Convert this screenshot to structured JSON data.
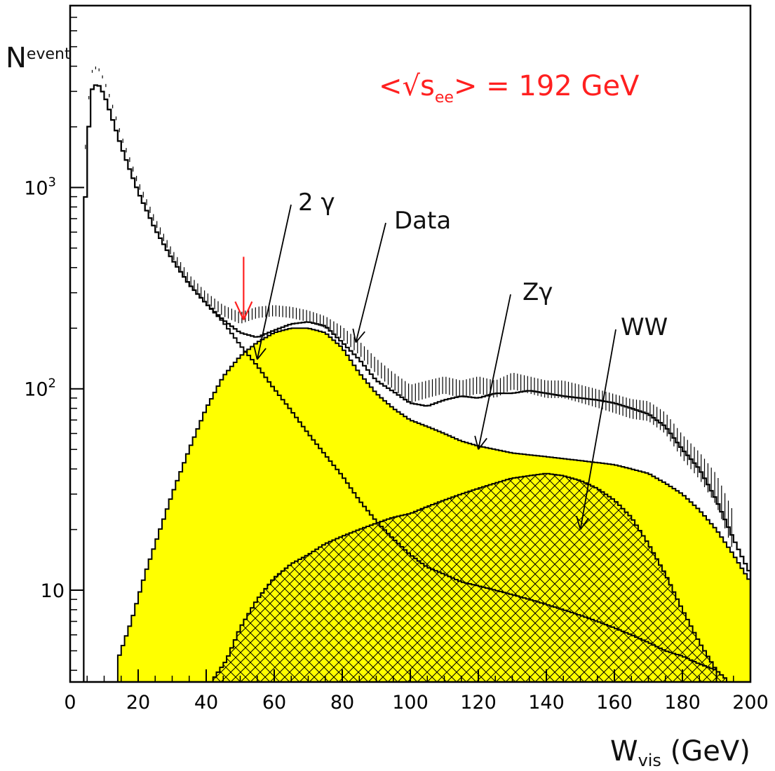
{
  "chart_data": {
    "type": "histogram",
    "title": "",
    "annotation": {
      "text_pre": "<√s",
      "text_sub": "ee",
      "text_post": "> = 192 GeV",
      "color": "#ff2020"
    },
    "xlabel": {
      "main": "W",
      "sub": "vis",
      "unit": " (GeV)"
    },
    "ylabel": {
      "main": "N",
      "sub": "event"
    },
    "xlim": [
      0,
      200
    ],
    "ylim": [
      3.5,
      8000
    ],
    "y_scale": "log",
    "x_ticks": [
      "0",
      "20",
      "40",
      "60",
      "80",
      "100",
      "120",
      "140",
      "160",
      "180",
      "200"
    ],
    "y_ticks": [
      {
        "value": 10,
        "base": "10",
        "exp": ""
      },
      {
        "value": 100,
        "base": "10",
        "exp": "2"
      },
      {
        "value": 1000,
        "base": "10",
        "exp": "3"
      }
    ],
    "colors": {
      "fill": "#ffff00",
      "line": "#000000",
      "cut_arrow": "#ff2020"
    },
    "labels": {
      "two_gamma": "2 γ",
      "data": "Data",
      "z_gamma": "Zγ",
      "ww": "WW"
    },
    "cut_marker_x": 51,
    "label_arrows": [
      {
        "label": "two_gamma",
        "target_x": 55,
        "target_y": 140
      },
      {
        "label": "data",
        "target_x": 84,
        "target_y": 170
      },
      {
        "label": "z_gamma",
        "target_x": 120,
        "target_y": 50
      },
      {
        "label": "ww",
        "target_x": 150,
        "target_y": 20
      }
    ],
    "series": [
      {
        "name": "total_mc",
        "x": [
          4,
          6,
          8,
          10,
          12,
          15,
          20,
          25,
          30,
          35,
          40,
          45,
          50,
          55,
          60,
          65,
          70,
          75,
          80,
          85,
          90,
          95,
          100,
          105,
          110,
          115,
          120,
          125,
          130,
          135,
          140,
          145,
          150,
          155,
          160,
          165,
          170,
          175,
          180,
          185,
          190,
          195,
          200
        ],
        "y": [
          600,
          3000,
          3300,
          2900,
          2300,
          1600,
          950,
          620,
          440,
          330,
          265,
          220,
          190,
          180,
          195,
          210,
          215,
          205,
          170,
          140,
          110,
          97,
          85,
          82,
          88,
          92,
          90,
          95,
          95,
          98,
          95,
          92,
          90,
          88,
          85,
          80,
          75,
          65,
          50,
          40,
          28,
          18,
          12
        ]
      },
      {
        "name": "data",
        "x": [
          4,
          6,
          8,
          10,
          12,
          15,
          20,
          25,
          30,
          35,
          40,
          45,
          50,
          55,
          60,
          65,
          70,
          75,
          80,
          85,
          90,
          95,
          100,
          105,
          110,
          115,
          120,
          125,
          130,
          135,
          140,
          145,
          150,
          155,
          160,
          165,
          170,
          175,
          180,
          185,
          190,
          195
        ],
        "y": [
          1200,
          3700,
          4000,
          3400,
          2700,
          1800,
          1050,
          680,
          470,
          350,
          285,
          245,
          225,
          240,
          245,
          240,
          230,
          215,
          190,
          160,
          130,
          110,
          95,
          100,
          105,
          100,
          105,
          100,
          110,
          105,
          100,
          100,
          95,
          90,
          85,
          80,
          78,
          68,
          52,
          42,
          32,
          20
        ]
      },
      {
        "name": "two_gamma",
        "x": [
          4,
          6,
          8,
          10,
          12,
          15,
          20,
          25,
          30,
          35,
          40,
          45,
          50,
          55,
          60,
          65,
          70,
          75,
          80,
          85,
          90,
          95,
          100,
          105,
          110,
          115,
          120,
          125,
          130,
          135,
          140,
          145,
          150,
          155,
          160,
          165,
          170,
          175,
          180,
          185,
          190
        ],
        "y": [
          600,
          3000,
          3300,
          2900,
          2300,
          1600,
          950,
          620,
          440,
          330,
          265,
          215,
          165,
          130,
          100,
          78,
          60,
          47,
          37,
          28,
          22,
          18,
          15,
          13,
          12,
          11,
          10.5,
          10,
          9.5,
          9,
          8.5,
          8,
          7.5,
          7,
          6.5,
          6,
          5.5,
          5,
          4.7,
          4.3,
          4
        ]
      },
      {
        "name": "z_gamma",
        "x": [
          14,
          18,
          22,
          26,
          30,
          35,
          40,
          45,
          50,
          55,
          60,
          65,
          70,
          75,
          80,
          85,
          90,
          95,
          100,
          105,
          110,
          115,
          120,
          125,
          130,
          135,
          140,
          145,
          150,
          155,
          160,
          165,
          170,
          175,
          180,
          185,
          190,
          195,
          200
        ],
        "y": [
          4.5,
          7,
          12,
          19,
          30,
          50,
          80,
          115,
          145,
          170,
          190,
          200,
          200,
          190,
          160,
          120,
          95,
          80,
          70,
          65,
          60,
          55,
          52,
          50,
          48,
          47,
          46,
          45,
          44,
          43,
          42,
          40,
          38,
          34,
          30,
          25,
          20,
          15,
          11
        ]
      },
      {
        "name": "ww",
        "x": [
          42,
          46,
          50,
          55,
          60,
          65,
          70,
          75,
          80,
          85,
          90,
          95,
          100,
          105,
          110,
          115,
          120,
          125,
          130,
          135,
          140,
          145,
          150,
          155,
          160,
          165,
          170,
          175,
          180,
          185,
          190,
          193
        ],
        "y": [
          3.6,
          4.5,
          6.5,
          9,
          11.5,
          13.5,
          15,
          17,
          18.5,
          20,
          21.5,
          23,
          24,
          26,
          28,
          30,
          32,
          34,
          36,
          37,
          38,
          37,
          35,
          32,
          28,
          23,
          17,
          12,
          8,
          5.5,
          4,
          3.6
        ]
      }
    ]
  }
}
